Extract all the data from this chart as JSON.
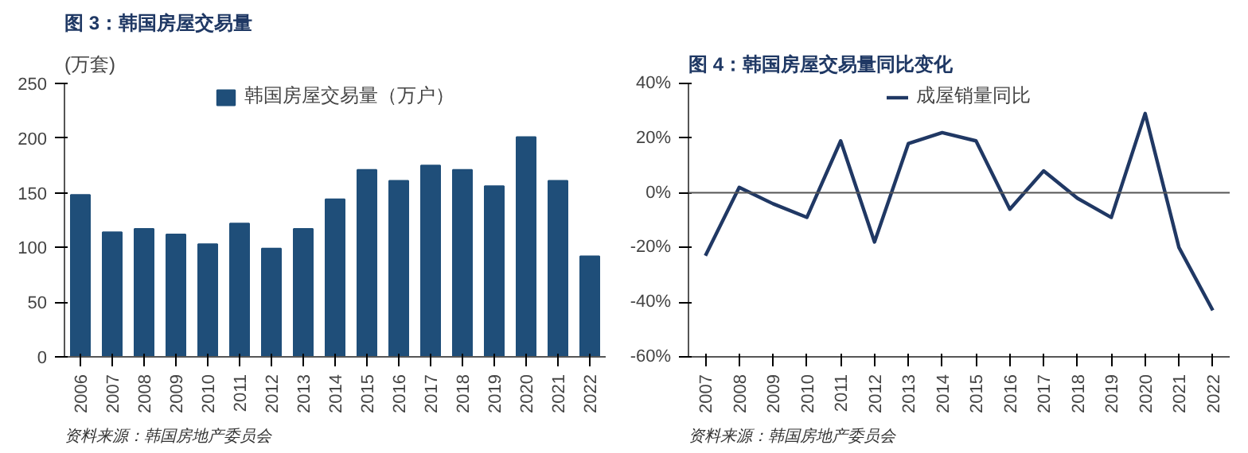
{
  "chart_data": [
    {
      "type": "bar",
      "title": "图 3：韩国房屋交易量",
      "ylabel": "(万套)",
      "categories": [
        "2006",
        "2007",
        "2008",
        "2009",
        "2010",
        "2011",
        "2012",
        "2013",
        "2014",
        "2015",
        "2016",
        "2017",
        "2018",
        "2019",
        "2020",
        "2021",
        "2022"
      ],
      "series": [
        {
          "name": "韩国房屋交易量（万户）",
          "color": "#1f4e79",
          "values": [
            148,
            114,
            117,
            112,
            103,
            122,
            99,
            117,
            144,
            171,
            161,
            175,
            171,
            156,
            201,
            161,
            92
          ]
        }
      ],
      "ylim": [
        0,
        250
      ],
      "yticks": [
        0,
        50,
        100,
        150,
        200,
        250
      ],
      "grid": false,
      "legend": "top",
      "annotations": [
        "资料来源：韩国房地产委员会"
      ]
    },
    {
      "type": "line",
      "title": "图 4：韩国房屋交易量同比变化",
      "categories": [
        "2007",
        "2008",
        "2009",
        "2010",
        "2011",
        "2012",
        "2013",
        "2014",
        "2015",
        "2016",
        "2017",
        "2018",
        "2019",
        "2020",
        "2021",
        "2022"
      ],
      "series": [
        {
          "name": "成屋销量同比",
          "color": "#203864",
          "values": [
            -23,
            2,
            -4,
            -9,
            19,
            -18,
            18,
            22,
            19,
            -6,
            8,
            -2,
            -9,
            29,
            -20,
            -43
          ]
        }
      ],
      "ylim": [
        -60,
        40
      ],
      "yticks": [
        {
          "value": -60,
          "label": "-60%"
        },
        {
          "value": -40,
          "label": "-40%"
        },
        {
          "value": -20,
          "label": "-20%"
        },
        {
          "value": 0,
          "label": "0%"
        },
        {
          "value": 20,
          "label": "20%"
        },
        {
          "value": 40,
          "label": "40%"
        }
      ],
      "grid": false,
      "ref_lines": [
        {
          "axis": "y",
          "value": 0
        }
      ],
      "legend": "top",
      "marker": "none",
      "line_style": "solid",
      "annotations": [
        "资料来源：韩国房地产委员会"
      ]
    }
  ]
}
